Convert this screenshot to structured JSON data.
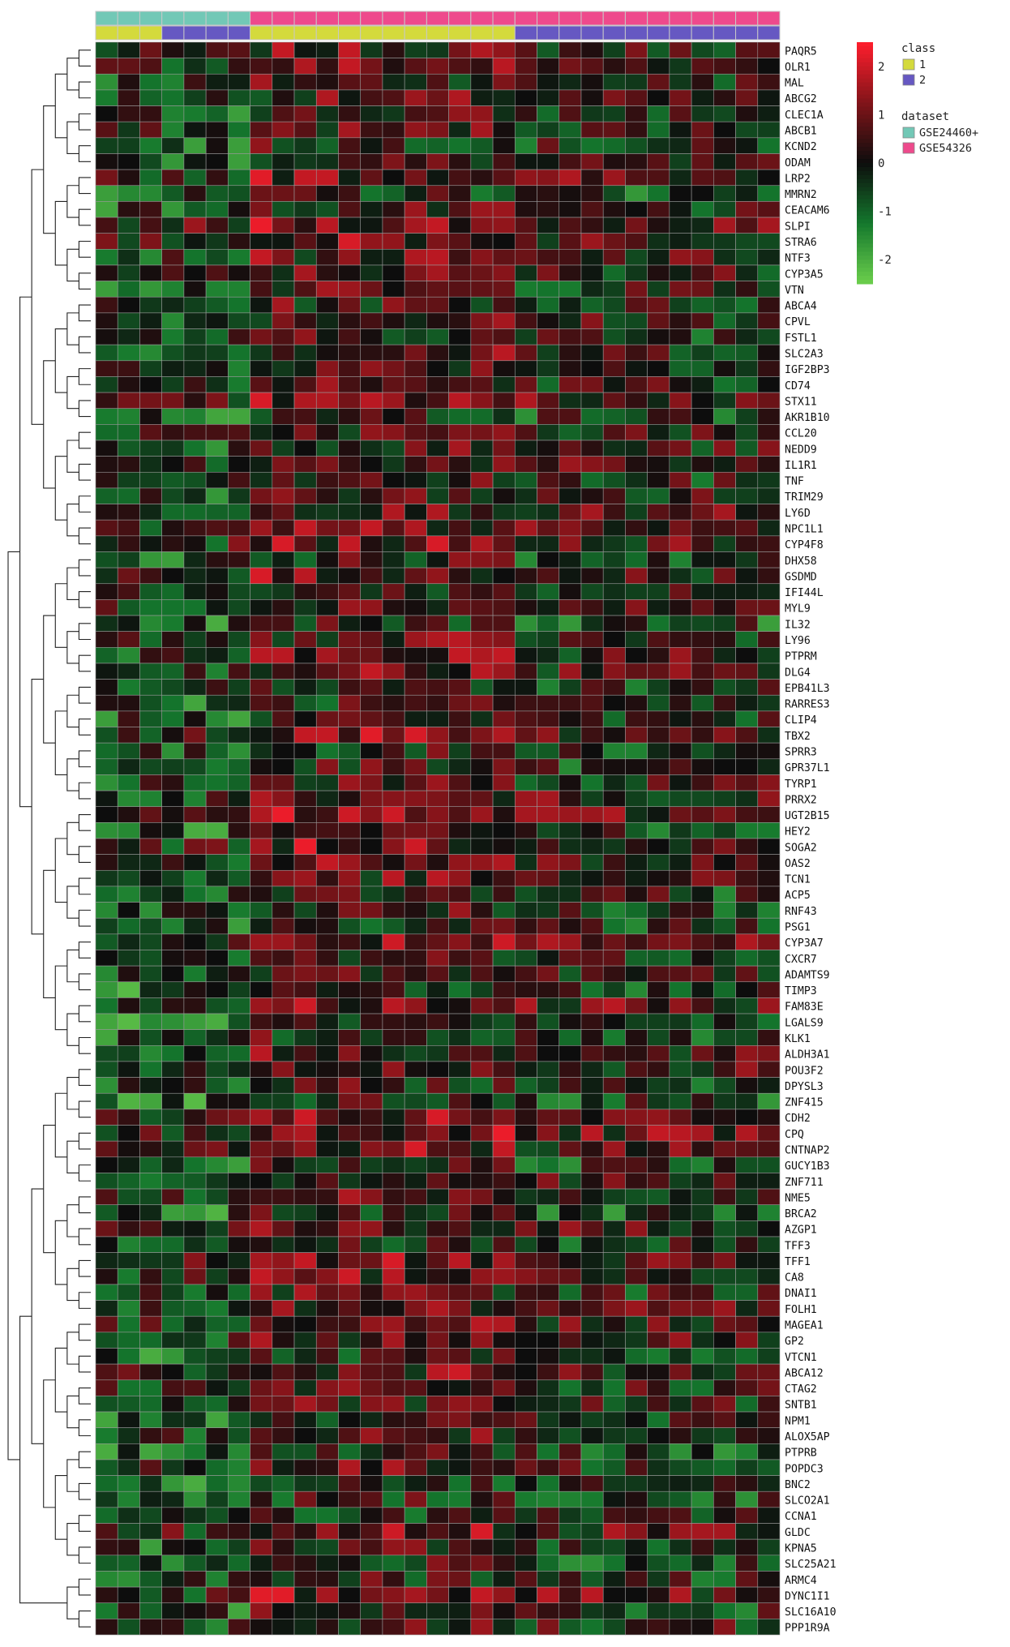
{
  "chart_data": {
    "type": "heatmap",
    "title": "",
    "xlabel": "",
    "ylabel": "",
    "column_labels": [],
    "columns": 31,
    "row_labels": [
      "PAQR5",
      "OLR1",
      "MAL",
      "ABCG2",
      "CLEC1A",
      "ABCB1",
      "KCND2",
      "ODAM",
      "LRP2",
      "MMRN2",
      "CEACAM6",
      "SLPI",
      "STRA6",
      "NTF3",
      "CYP3A5",
      "VTN",
      "ABCA4",
      "CPVL",
      "FSTL1",
      "SLC2A3",
      "IGF2BP3",
      "CD74",
      "STX11",
      "AKR1B10",
      "CCL20",
      "NEDD9",
      "IL1R1",
      "TNF",
      "TRIM29",
      "LY6D",
      "NPC1L1",
      "CYP4F8",
      "DHX58",
      "GSDMD",
      "IFI44L",
      "MYL9",
      "IL32",
      "LY96",
      "PTPRM",
      "DLG4",
      "EPB41L3",
      "RARRES3",
      "CLIP4",
      "TBX2",
      "SPRR3",
      "GPR37L1",
      "TYRP1",
      "PRRX2",
      "UGT2B15",
      "HEY2",
      "SOGA2",
      "OAS2",
      "TCN1",
      "ACP5",
      "RNF43",
      "PSG1",
      "CYP3A7",
      "CXCR7",
      "ADAMTS9",
      "TIMP3",
      "FAM83E",
      "LGALS9",
      "KLK1",
      "ALDH3A1",
      "POU3F2",
      "DPYSL3",
      "ZNF415",
      "CDH2",
      "CPQ",
      "CNTNAP2",
      "GUCY1B3",
      "ZNF711",
      "NME5",
      "BRCA2",
      "AZGP1",
      "TFF3",
      "TFF1",
      "CA8",
      "DNAI1",
      "FOLH1",
      "MAGEA1",
      "GP2",
      "VTCN1",
      "ABCA12",
      "CTAG2",
      "SNTB1",
      "NPM1",
      "ALOX5AP",
      "PTPRB",
      "POPDC3",
      "BNC2",
      "SLCO2A1",
      "CCNA1",
      "GLDC",
      "KPNA5",
      "SLC25A21",
      "ARMC4",
      "DYNC1I1",
      "SLC16A10",
      "PPP1R9A"
    ],
    "column_annotations": {
      "dataset": [
        "GSE24460+",
        "GSE24460+",
        "GSE24460+",
        "GSE24460+",
        "GSE24460+",
        "GSE24460+",
        "GSE24460+",
        "GSE54326",
        "GSE54326",
        "GSE54326",
        "GSE54326",
        "GSE54326",
        "GSE54326",
        "GSE54326",
        "GSE54326",
        "GSE54326",
        "GSE54326",
        "GSE54326",
        "GSE54326",
        "GSE54326",
        "GSE54326",
        "GSE54326",
        "GSE54326",
        "GSE54326",
        "GSE54326",
        "GSE54326",
        "GSE54326",
        "GSE54326",
        "GSE54326",
        "GSE54326",
        "GSE54326"
      ],
      "class": [
        "1",
        "1",
        "1",
        "2",
        "2",
        "2",
        "2",
        "1",
        "1",
        "1",
        "1",
        "1",
        "1",
        "1",
        "1",
        "1",
        "1",
        "1",
        "1",
        "2",
        "2",
        "2",
        "2",
        "2",
        "2",
        "2",
        "2",
        "2",
        "2",
        "2",
        "2"
      ]
    },
    "color_scale": {
      "min": -2.5,
      "max": 2.5,
      "ticks": [
        2,
        1,
        0,
        -1,
        -2
      ],
      "colors": {
        "low": "#6ccf4c",
        "mid": "#0d0d0d",
        "high": "#ff1e2d"
      }
    },
    "legend": {
      "position": "top-right",
      "class_title": "class",
      "class_items": [
        {
          "label": "1",
          "color": "#d4da3c"
        },
        {
          "label": "2",
          "color": "#6658c2"
        }
      ],
      "dataset_title": "dataset",
      "dataset_items": [
        {
          "label": "GSE24460+",
          "color": "#72c8b6"
        },
        {
          "label": "GSE54326",
          "color": "#ee4a8c"
        }
      ]
    },
    "dendrogram": "rows",
    "grid": true,
    "values_note_seed": 7
  }
}
